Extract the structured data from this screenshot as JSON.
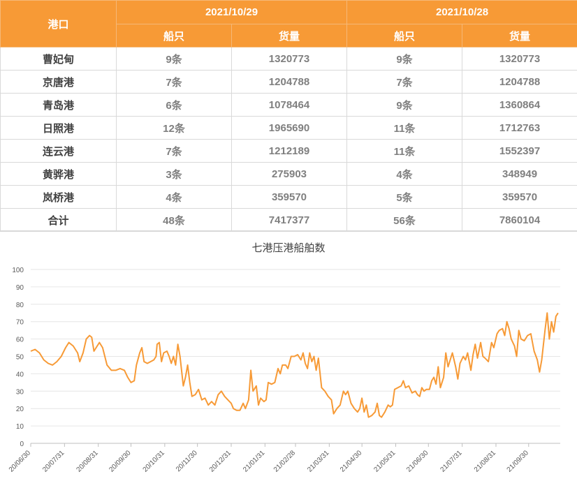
{
  "table": {
    "port_header": "港口",
    "date1": "2021/10/29",
    "date2": "2021/10/28",
    "ships_label": "船只",
    "cargo_label": "货量",
    "rows": [
      {
        "port": "曹妃甸",
        "s1": "9条",
        "c1": "1320773",
        "s2": "9条",
        "c2": "1320773"
      },
      {
        "port": "京唐港",
        "s1": "7条",
        "c1": "1204788",
        "s2": "7条",
        "c2": "1204788"
      },
      {
        "port": "青岛港",
        "s1": "6条",
        "c1": "1078464",
        "s2": "9条",
        "c2": "1360864"
      },
      {
        "port": "日照港",
        "s1": "12条",
        "c1": "1965690",
        "s2": "11条",
        "c2": "1712763"
      },
      {
        "port": "连云港",
        "s1": "7条",
        "c1": "1212189",
        "s2": "11条",
        "c2": "1552397"
      },
      {
        "port": "黄骅港",
        "s1": "3条",
        "c1": "275903",
        "s2": "4条",
        "c2": "348949"
      },
      {
        "port": "岚桥港",
        "s1": "4条",
        "c1": "359570",
        "s2": "5条",
        "c2": "359570"
      },
      {
        "port": "合计",
        "s1": "48条",
        "c1": "7417377",
        "s2": "56条",
        "c2": "7860104"
      }
    ]
  },
  "chart_data": {
    "type": "line",
    "title": "七港压港船舶数",
    "ylim": [
      0,
      100
    ],
    "yticks": [
      0,
      10,
      20,
      30,
      40,
      50,
      60,
      70,
      80,
      90,
      100
    ],
    "xticks": [
      "20/06/30",
      "20/07/31",
      "20/08/31",
      "20/09/30",
      "20/10/31",
      "20/11/30",
      "20/12/31",
      "21/01/31",
      "21/02/28",
      "21/03/31",
      "21/04/30",
      "21/05/31",
      "21/06/30",
      "21/07/31",
      "21/08/31",
      "21/09/30"
    ],
    "x_start": "2020-06-30",
    "x_end": "2021-10-29",
    "line_color": "#f79a36",
    "grid": true,
    "series": [
      {
        "points": [
          [
            "2020-06-30",
            53
          ],
          [
            "2020-07-04",
            54
          ],
          [
            "2020-07-08",
            52
          ],
          [
            "2020-07-12",
            48
          ],
          [
            "2020-07-16",
            46
          ],
          [
            "2020-07-20",
            45
          ],
          [
            "2020-07-24",
            47
          ],
          [
            "2020-07-28",
            50
          ],
          [
            "2020-08-01",
            55
          ],
          [
            "2020-08-04",
            58
          ],
          [
            "2020-08-08",
            56
          ],
          [
            "2020-08-12",
            52
          ],
          [
            "2020-08-14",
            47
          ],
          [
            "2020-08-17",
            52
          ],
          [
            "2020-08-20",
            60
          ],
          [
            "2020-08-23",
            62
          ],
          [
            "2020-08-25",
            61
          ],
          [
            "2020-08-27",
            53
          ],
          [
            "2020-08-29",
            55
          ],
          [
            "2020-09-01",
            58
          ],
          [
            "2020-09-04",
            55
          ],
          [
            "2020-09-08",
            45
          ],
          [
            "2020-09-12",
            42
          ],
          [
            "2020-09-16",
            42
          ],
          [
            "2020-09-20",
            43
          ],
          [
            "2020-09-24",
            42
          ],
          [
            "2020-09-27",
            38
          ],
          [
            "2020-09-30",
            35
          ],
          [
            "2020-10-03",
            36
          ],
          [
            "2020-10-05",
            45
          ],
          [
            "2020-10-08",
            52
          ],
          [
            "2020-10-10",
            55
          ],
          [
            "2020-10-12",
            47
          ],
          [
            "2020-10-15",
            46
          ],
          [
            "2020-10-18",
            47
          ],
          [
            "2020-10-21",
            48
          ],
          [
            "2020-10-23",
            50
          ],
          [
            "2020-10-24",
            57
          ],
          [
            "2020-10-26",
            58
          ],
          [
            "2020-10-28",
            47
          ],
          [
            "2020-10-30",
            52
          ],
          [
            "2020-11-02",
            53
          ],
          [
            "2020-11-04",
            50
          ],
          [
            "2020-11-06",
            46
          ],
          [
            "2020-11-08",
            50
          ],
          [
            "2020-11-10",
            45
          ],
          [
            "2020-11-12",
            57
          ],
          [
            "2020-11-14",
            50
          ],
          [
            "2020-11-17",
            33
          ],
          [
            "2020-11-19",
            38
          ],
          [
            "2020-11-21",
            45
          ],
          [
            "2020-11-23",
            35
          ],
          [
            "2020-11-25",
            27
          ],
          [
            "2020-11-28",
            28
          ],
          [
            "2020-12-01",
            31
          ],
          [
            "2020-12-04",
            25
          ],
          [
            "2020-12-07",
            26
          ],
          [
            "2020-12-10",
            22
          ],
          [
            "2020-12-13",
            24
          ],
          [
            "2020-12-16",
            22
          ],
          [
            "2020-12-19",
            28
          ],
          [
            "2020-12-22",
            30
          ],
          [
            "2020-12-25",
            27
          ],
          [
            "2020-12-28",
            25
          ],
          [
            "2020-12-31",
            23
          ],
          [
            "2021-01-02",
            20
          ],
          [
            "2021-01-05",
            19
          ],
          [
            "2021-01-08",
            19
          ],
          [
            "2021-01-11",
            23
          ],
          [
            "2021-01-13",
            20
          ],
          [
            "2021-01-16",
            25
          ],
          [
            "2021-01-18",
            42
          ],
          [
            "2021-01-20",
            30
          ],
          [
            "2021-01-23",
            33
          ],
          [
            "2021-01-25",
            22
          ],
          [
            "2021-01-27",
            26
          ],
          [
            "2021-01-30",
            24
          ],
          [
            "2021-02-01",
            25
          ],
          [
            "2021-02-03",
            35
          ],
          [
            "2021-02-06",
            34
          ],
          [
            "2021-02-09",
            35
          ],
          [
            "2021-02-12",
            43
          ],
          [
            "2021-02-14",
            40
          ],
          [
            "2021-02-16",
            45
          ],
          [
            "2021-02-19",
            45
          ],
          [
            "2021-02-21",
            43
          ],
          [
            "2021-02-24",
            50
          ],
          [
            "2021-02-27",
            50
          ],
          [
            "2021-03-02",
            51
          ],
          [
            "2021-03-05",
            48
          ],
          [
            "2021-03-07",
            52
          ],
          [
            "2021-03-09",
            46
          ],
          [
            "2021-03-11",
            43
          ],
          [
            "2021-03-13",
            52
          ],
          [
            "2021-03-15",
            47
          ],
          [
            "2021-03-17",
            50
          ],
          [
            "2021-03-19",
            42
          ],
          [
            "2021-03-21",
            49
          ],
          [
            "2021-03-24",
            32
          ],
          [
            "2021-03-27",
            30
          ],
          [
            "2021-03-30",
            27
          ],
          [
            "2021-04-02",
            25
          ],
          [
            "2021-04-04",
            17
          ],
          [
            "2021-04-07",
            20
          ],
          [
            "2021-04-10",
            22
          ],
          [
            "2021-04-13",
            30
          ],
          [
            "2021-04-15",
            28
          ],
          [
            "2021-04-17",
            30
          ],
          [
            "2021-04-20",
            23
          ],
          [
            "2021-04-23",
            20
          ],
          [
            "2021-04-26",
            18
          ],
          [
            "2021-04-28",
            20
          ],
          [
            "2021-04-30",
            26
          ],
          [
            "2021-05-02",
            18
          ],
          [
            "2021-05-04",
            22
          ],
          [
            "2021-05-06",
            15
          ],
          [
            "2021-05-09",
            16
          ],
          [
            "2021-05-12",
            18
          ],
          [
            "2021-05-14",
            23
          ],
          [
            "2021-05-16",
            16
          ],
          [
            "2021-05-18",
            15
          ],
          [
            "2021-05-21",
            18
          ],
          [
            "2021-05-24",
            22
          ],
          [
            "2021-05-26",
            21
          ],
          [
            "2021-05-28",
            22
          ],
          [
            "2021-05-30",
            31
          ],
          [
            "2021-06-02",
            32
          ],
          [
            "2021-06-05",
            33
          ],
          [
            "2021-06-07",
            36
          ],
          [
            "2021-06-09",
            32
          ],
          [
            "2021-06-12",
            33
          ],
          [
            "2021-06-15",
            29
          ],
          [
            "2021-06-18",
            30
          ],
          [
            "2021-06-20",
            28
          ],
          [
            "2021-06-22",
            27
          ],
          [
            "2021-06-24",
            32
          ],
          [
            "2021-06-26",
            30
          ],
          [
            "2021-06-28",
            31
          ],
          [
            "2021-07-01",
            31
          ],
          [
            "2021-07-03",
            36
          ],
          [
            "2021-07-05",
            38
          ],
          [
            "2021-07-07",
            34
          ],
          [
            "2021-07-09",
            44
          ],
          [
            "2021-07-11",
            32
          ],
          [
            "2021-07-14",
            38
          ],
          [
            "2021-07-16",
            52
          ],
          [
            "2021-07-18",
            44
          ],
          [
            "2021-07-20",
            48
          ],
          [
            "2021-07-22",
            52
          ],
          [
            "2021-07-25",
            44
          ],
          [
            "2021-07-27",
            37
          ],
          [
            "2021-07-29",
            46
          ],
          [
            "2021-08-01",
            50
          ],
          [
            "2021-08-03",
            48
          ],
          [
            "2021-08-05",
            52
          ],
          [
            "2021-08-08",
            42
          ],
          [
            "2021-08-10",
            51
          ],
          [
            "2021-08-12",
            57
          ],
          [
            "2021-08-14",
            49
          ],
          [
            "2021-08-17",
            58
          ],
          [
            "2021-08-19",
            50
          ],
          [
            "2021-08-21",
            49
          ],
          [
            "2021-08-24",
            47
          ],
          [
            "2021-08-27",
            58
          ],
          [
            "2021-08-29",
            55
          ],
          [
            "2021-09-01",
            63
          ],
          [
            "2021-09-03",
            65
          ],
          [
            "2021-09-06",
            66
          ],
          [
            "2021-09-08",
            62
          ],
          [
            "2021-09-10",
            70
          ],
          [
            "2021-09-12",
            66
          ],
          [
            "2021-09-14",
            60
          ],
          [
            "2021-09-17",
            56
          ],
          [
            "2021-09-19",
            50
          ],
          [
            "2021-09-21",
            65
          ],
          [
            "2021-09-23",
            60
          ],
          [
            "2021-09-26",
            59
          ],
          [
            "2021-09-29",
            62
          ],
          [
            "2021-10-02",
            63
          ],
          [
            "2021-10-05",
            53
          ],
          [
            "2021-10-08",
            48
          ],
          [
            "2021-10-10",
            41
          ],
          [
            "2021-10-12",
            48
          ],
          [
            "2021-10-15",
            65
          ],
          [
            "2021-10-17",
            75
          ],
          [
            "2021-10-19",
            60
          ],
          [
            "2021-10-21",
            70
          ],
          [
            "2021-10-23",
            64
          ],
          [
            "2021-10-25",
            73
          ],
          [
            "2021-10-27",
            75
          ]
        ]
      }
    ]
  }
}
